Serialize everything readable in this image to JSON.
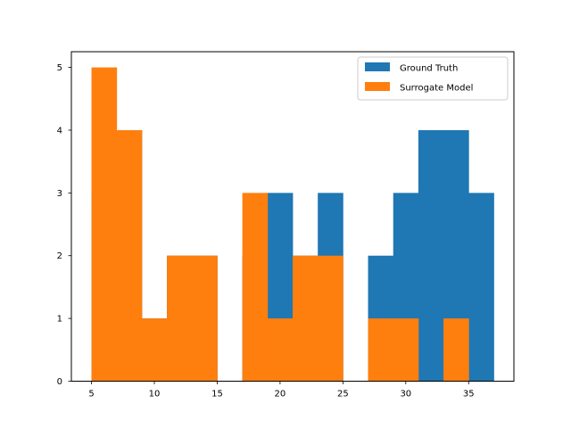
{
  "chart_data": {
    "type": "bar",
    "title": "",
    "xlabel": "",
    "ylabel": "",
    "xlim": [
      3.4,
      38.6
    ],
    "ylim": [
      0,
      5.25
    ],
    "xticks": [
      5,
      10,
      15,
      20,
      25,
      30,
      35
    ],
    "yticks": [
      0,
      1,
      2,
      3,
      4,
      5
    ],
    "grid": false,
    "legend_position": "top-right",
    "bin_edges": [
      5,
      7,
      9,
      11,
      13,
      15,
      17,
      19,
      21,
      23,
      25,
      27,
      29,
      31,
      33,
      35,
      37
    ],
    "series": [
      {
        "name": "Ground Truth",
        "color": "#1f77b4",
        "values": [
          3,
          4,
          1,
          2,
          2,
          0,
          2,
          3,
          2,
          3,
          0,
          2,
          3,
          4,
          4,
          3
        ]
      },
      {
        "name": "Surrogate Model",
        "color": "#ff7f0e",
        "values": [
          5,
          4,
          1,
          2,
          2,
          0,
          3,
          1,
          2,
          2,
          0,
          1,
          1,
          0,
          1,
          0
        ]
      }
    ]
  }
}
